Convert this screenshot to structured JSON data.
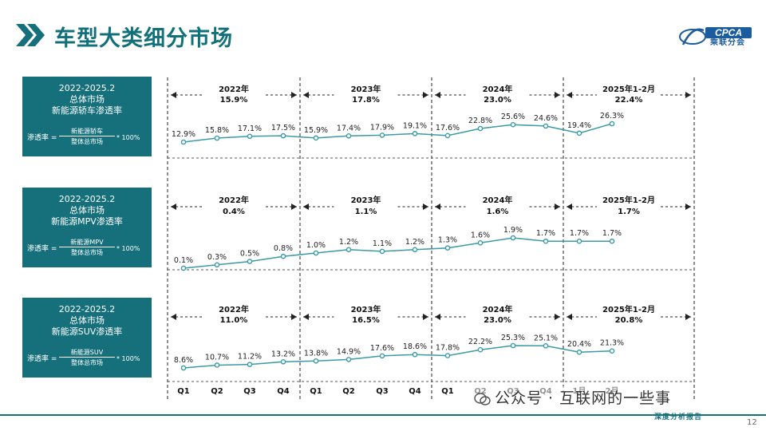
{
  "page": {
    "title": "车型大类细分市场",
    "page_number": "12",
    "logo_text": "CPCA",
    "logo_subtext": "乘联分会",
    "watermark": "公众号 · 互联网的一些事",
    "stamp": "深度分析报告"
  },
  "colors": {
    "accent": "#16707b",
    "line": "#3a9aa6",
    "title": "#11707a"
  },
  "chart_data": {
    "type": "line",
    "categories": [
      "Q1",
      "Q2",
      "Q3",
      "Q4",
      "Q1",
      "Q2",
      "Q3",
      "Q4",
      "Q1",
      "Q2",
      "Q3",
      "Q4",
      "1月",
      "2月"
    ],
    "panels": [
      {
        "box": {
          "period": "2022-2025.2",
          "line1": "总体市场",
          "line2": "新能源轿车渗透率",
          "formula_label": "渗透率 =",
          "numerator": "新能源轿车",
          "denominator": "整体总市场",
          "multiplier": "* 100%"
        },
        "segments": [
          {
            "year": "2022年",
            "value": "15.9%"
          },
          {
            "year": "2023年",
            "value": "17.8%"
          },
          {
            "year": "2024年",
            "value": "23.0%"
          },
          {
            "year": "2025年1-2月",
            "value": "22.4%"
          }
        ],
        "values": [
          12.9,
          15.8,
          17.1,
          17.5,
          15.9,
          17.4,
          17.9,
          19.1,
          17.6,
          22.8,
          25.6,
          24.6,
          19.4,
          26.3
        ],
        "labels": [
          "12.9%",
          "15.8%",
          "17.1%",
          "17.5%",
          "15.9%",
          "17.4%",
          "17.9%",
          "19.1%",
          "17.6%",
          "22.8%",
          "25.6%",
          "24.6%",
          "19.4%",
          "26.3%"
        ]
      },
      {
        "box": {
          "period": "2022-2025.2",
          "line1": "总体市场",
          "line2": "新能源MPV渗透率",
          "formula_label": "渗透率 =",
          "numerator": "新能源MPV",
          "denominator": "整体总市场",
          "multiplier": "* 100%"
        },
        "segments": [
          {
            "year": "2022年",
            "value": "0.4%"
          },
          {
            "year": "2023年",
            "value": "1.1%"
          },
          {
            "year": "2024年",
            "value": "1.6%"
          },
          {
            "year": "2025年1-2月",
            "value": "1.7%"
          }
        ],
        "values": [
          0.1,
          0.3,
          0.5,
          0.8,
          1.0,
          1.2,
          1.1,
          1.2,
          1.3,
          1.6,
          1.9,
          1.7,
          1.7,
          1.7
        ],
        "labels": [
          "0.1%",
          "0.3%",
          "0.5%",
          "0.8%",
          "1.0%",
          "1.2%",
          "1.1%",
          "1.2%",
          "1.3%",
          "1.6%",
          "1.9%",
          "1.7%",
          "1.7%",
          "1.7%"
        ]
      },
      {
        "box": {
          "period": "2022-2025.2",
          "line1": "总体市场",
          "line2": "新能源SUV渗透率",
          "formula_label": "渗透率 =",
          "numerator": "新能源SUV",
          "denominator": "整体总市场",
          "multiplier": "* 100%"
        },
        "segments": [
          {
            "year": "2022年",
            "value": "11.0%"
          },
          {
            "year": "2023年",
            "value": "16.5%"
          },
          {
            "year": "2024年",
            "value": "23.0%"
          },
          {
            "year": "2025年1-2月",
            "value": "20.8%"
          }
        ],
        "values": [
          8.6,
          10.7,
          11.2,
          13.2,
          13.8,
          14.9,
          17.6,
          18.6,
          17.8,
          22.2,
          25.3,
          25.1,
          20.4,
          21.3
        ],
        "labels": [
          "8.6%",
          "10.7%",
          "11.2%",
          "13.2%",
          "13.8%",
          "14.9%",
          "17.6%",
          "18.6%",
          "17.8%",
          "22.2%",
          "25.3%",
          "25.1%",
          "20.4%",
          "21.3%"
        ]
      }
    ]
  }
}
